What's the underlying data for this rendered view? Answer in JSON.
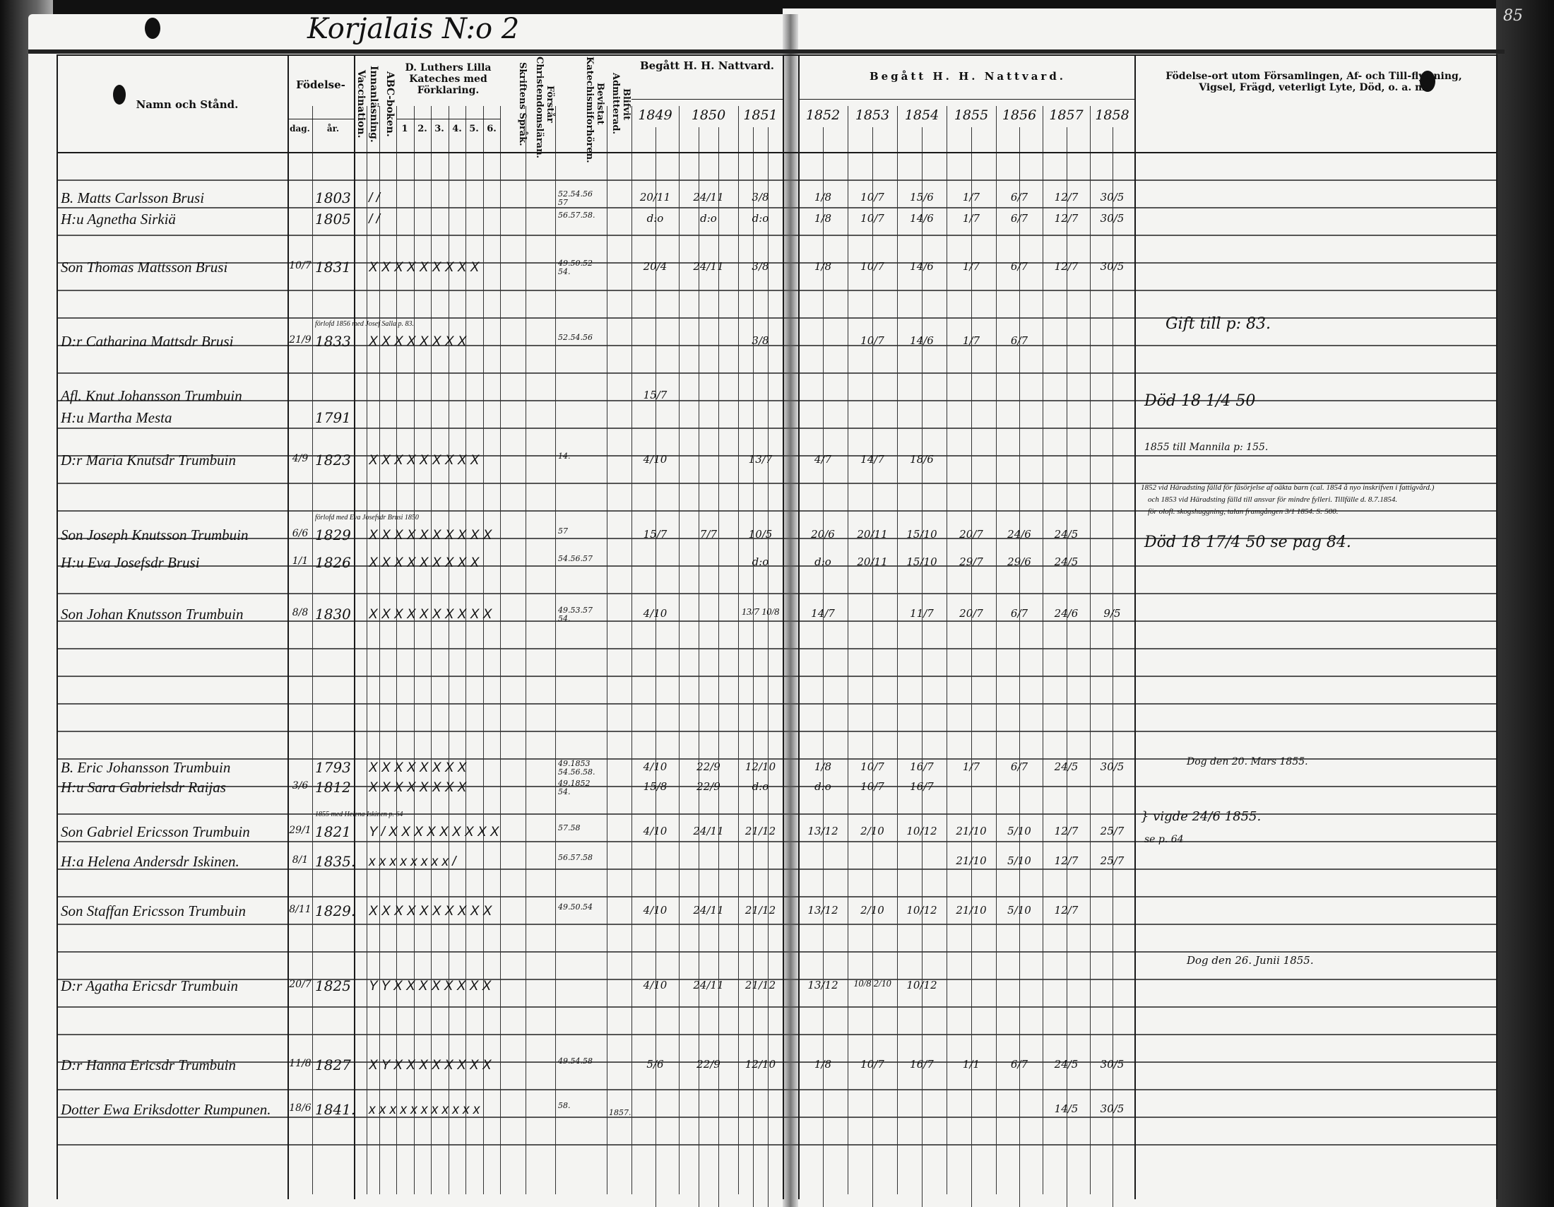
{
  "page_title": "Korjalais N:o 2",
  "page_number": "85",
  "header": {
    "names": "Namn och Stånd.",
    "birth": "Födelse-",
    "birth_day": "dag.",
    "birth_year": "år.",
    "vaccination": "Vaccination.",
    "reading": "Innanläsning.",
    "abc": "ABC-boken.",
    "catechism": "D. Luthers Lilla Kateches med Förklaring.",
    "catechism_cols": [
      "1",
      "2.",
      "3.",
      "4.",
      "5.",
      "6."
    ],
    "scripture": "Skriftens Språk.",
    "understands": "Förstår Christendomsläran.",
    "attended": "Bevistat Katechismiforhören.",
    "admitted": "Blifvit Admitterad.",
    "communion_left": "Begått H. H. Nattvard.",
    "communion_right": "Begått H. H. Nattvard.",
    "years": [
      "1849",
      "1850",
      "1851",
      "1852",
      "1853",
      "1854",
      "1855",
      "1856",
      "1857",
      "1858"
    ],
    "remarks_line1": "Födelse-ort utom Församlingen, Af- och Till-flyttning, Vigsel, Frägd, veterligt Lyte, Död, o. a. m.",
    "remarks_line2": ""
  },
  "entries": [
    {
      "name": "B. Matts Carlsson Brusi",
      "day": "",
      "year": "1803",
      "marks": "/ /",
      "attended": "52.54.56 57",
      "admitted": "",
      "dates": [
        "20/11",
        "24/11",
        "3/8",
        "1/8",
        "10/7",
        "15/6",
        "1/7",
        "6/7",
        "12/7",
        "30/5"
      ]
    },
    {
      "name": "H:u Agnetha Sirkiä",
      "day": "",
      "year": "1805",
      "marks": "/ /",
      "attended": "56.57.58.",
      "admitted": "",
      "dates": [
        "d:o",
        "d:o",
        "d:o",
        "1/8",
        "10/7",
        "14/6",
        "1/7",
        "6/7",
        "12/7",
        "30/5"
      ]
    },
    {
      "name": "Son Thomas Mattsson Brusi",
      "day": "10/7",
      "year": "1831",
      "marks": "X X X X X X X X X",
      "attended": "49.50.52 54.",
      "admitted": "",
      "dates": [
        "20/4",
        "24/11",
        "3/8",
        "1/8",
        "10/7",
        "14/6",
        "1/7",
        "6/7",
        "12/7",
        "30/5"
      ]
    },
    {
      "name": "D:r Catharina Mattsdr Brusi",
      "day": "21/9",
      "year": "1833",
      "marks": "X X X X X X X X",
      "note": "förlofd 1856 med Josef Salla p. 83.",
      "attended": "52.54.56",
      "admitted": "",
      "dates": [
        "",
        "",
        "3/8",
        "",
        "10/7",
        "14/6",
        "1/7",
        "6/7",
        "",
        ""
      ]
    },
    {
      "name": "Afl. Knut Johansson Trumbuin",
      "day": "",
      "year": "",
      "marks": "",
      "attended": "",
      "admitted": "",
      "dates": [
        "15/7",
        "",
        "",
        "",
        "",
        "",
        "",
        "",
        "",
        ""
      ]
    },
    {
      "name": "H:u Martha Mesta",
      "day": "",
      "year": "1791",
      "marks": "",
      "attended": "",
      "admitted": "",
      "dates": [
        "",
        "",
        "",
        "",
        "",
        "",
        "",
        "",
        "",
        ""
      ]
    },
    {
      "name": "D:r Maria Knutsdr Trumbuin",
      "day": "4/9",
      "year": "1823",
      "marks": "X X X X X X X X X",
      "attended": "14.",
      "admitted": "",
      "dates": [
        "4/10",
        "",
        "13/7",
        "4/7",
        "14/7",
        "18/6",
        "",
        "",
        "",
        ""
      ]
    },
    {
      "name": "Son Joseph Knutsson Trumbuin",
      "day": "6/6",
      "year": "1829",
      "marks": "X X X X X X X X X X",
      "note": "förlofd med Eva Josefsdr Brusi 1850",
      "attended": "57",
      "admitted": "",
      "dates": [
        "15/7",
        "7/7",
        "10/5",
        "20/6",
        "20/11",
        "15/10",
        "20/7",
        "24/6",
        "24/5",
        ""
      ]
    },
    {
      "name": "H:u Eva Josefsdr Brusi",
      "day": "1/1",
      "year": "1826",
      "marks": "X X X X X X X X X",
      "attended": "54.56.57",
      "admitted": "",
      "dates": [
        "",
        "",
        "d:o",
        "d:o",
        "20/11",
        "15/10",
        "29/7",
        "29/6",
        "24/5",
        ""
      ]
    },
    {
      "name": "Son Johan Knutsson Trumbuin",
      "day": "8/8",
      "year": "1830",
      "marks": "X X X X X X X X X X",
      "attended": "49.53.57 54.",
      "admitted": "",
      "dates": [
        "4/10",
        "",
        "13/7 10/8",
        "14/7",
        "",
        "11/7",
        "20/7",
        "6/7",
        "24/6",
        "9/5"
      ]
    },
    {
      "name": "B. Eric Johansson Trumbuin",
      "day": "",
      "year": "1793",
      "marks": "X X X X X X X X",
      "attended": "49.1853 54.56.58.",
      "admitted": "",
      "dates": [
        "4/10",
        "22/9",
        "12/10",
        "1/8",
        "10/7",
        "16/7",
        "1/7",
        "6/7",
        "24/5",
        "30/5"
      ]
    },
    {
      "name": "H:u Sara Gabrielsdr Raijas",
      "day": "3/6",
      "year": "1812",
      "marks": "X X X X X X X X",
      "attended": "49.1852 54.",
      "admitted": "",
      "dates": [
        "15/8",
        "22/9",
        "d:o",
        "d:o",
        "10/7",
        "16/7",
        "",
        "",
        "",
        ""
      ]
    },
    {
      "name": "Son Gabriel Ericsson Trumbuin",
      "day": "29/1",
      "year": "1821",
      "marks": "Y / X X X X X X X X X",
      "note": "1855 med Helena Iskinen p. 64",
      "attended": "57.58",
      "admitted": "",
      "dates": [
        "4/10",
        "24/11",
        "21/12",
        "13/12",
        "2/10",
        "10/12",
        "21/10",
        "5/10",
        "12/7",
        "25/7"
      ]
    },
    {
      "name": "H:a Helena Andersdr Iskinen.",
      "day": "8/1",
      "year": "1835.",
      "marks": "x x x x x x x x /",
      "attended": "56.57.58",
      "admitted": "",
      "dates": [
        "",
        "",
        "",
        "",
        "",
        "",
        "21/10",
        "5/10",
        "12/7",
        "25/7"
      ]
    },
    {
      "name": "Son Staffan Ericsson Trumbuin",
      "day": "8/11",
      "year": "1829.",
      "marks": "X X X X X X X X X X",
      "attended": "49.50.54",
      "admitted": "",
      "dates": [
        "4/10",
        "24/11",
        "21/12",
        "13/12",
        "2/10",
        "10/12",
        "21/10",
        "5/10",
        "12/7",
        ""
      ]
    },
    {
      "name": "D:r Agatha Ericsdr Trumbuin",
      "day": "20/7",
      "year": "1825",
      "marks": "Y Y X X X X X X X X",
      "attended": "",
      "admitted": "",
      "dates": [
        "4/10",
        "24/11",
        "21/12",
        "13/12",
        "10/8 2/10",
        "10/12",
        "",
        "",
        "",
        ""
      ]
    },
    {
      "name": "D:r Hanna Ericsdr Trumbuin",
      "day": "11/8",
      "year": "1827",
      "marks": "X Y X X X X X X X X",
      "attended": "49.54.58",
      "admitted": "",
      "dates": [
        "5/6",
        "22/9",
        "12/10",
        "1/8",
        "10/7",
        "16/7",
        "1/1",
        "6/7",
        "24/5",
        "30/5"
      ]
    },
    {
      "name": "Dotter Ewa Eriksdotter Rumpunen.",
      "day": "18/6",
      "year": "1841.",
      "marks": "x x x x x x x x x x x",
      "attended": "58.",
      "admitted": "1857.",
      "dates": [
        "",
        "",
        "",
        "",
        "",
        "",
        "",
        "",
        "14/5",
        "30/5"
      ]
    }
  ],
  "remarks": [
    "Gift till p: 83.",
    "Död 18 1/4 50",
    "1855 till Mannila p: 155.",
    "1852 vid Häradsting fälld för fäsörjelse af oäkta barn (cal. 1854 å nyo inskrifven i fattigvård.)",
    "och 1853 vid Häradsting fälld till ansvar för mindre fylleri. Tillfälle d. 8.7.1854.",
    "för olofl. skogshuggning, talan framgången 3/1 1854. S: 500.",
    "Död 18 17/4 50 se pag 84.",
    "Dog den 20. Mars 1855.",
    "} vigde 24/6 1855.",
    "se p. 64",
    "Dog den 26. Junii 1855."
  ]
}
